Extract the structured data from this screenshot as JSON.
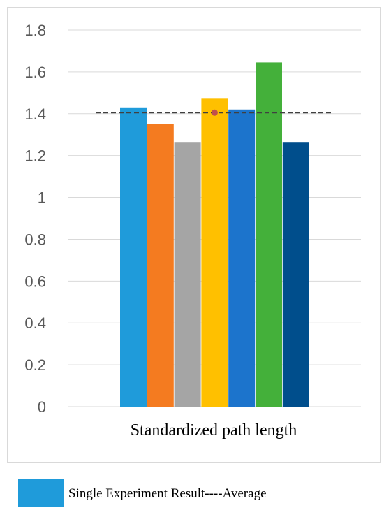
{
  "chart_data": {
    "type": "bar",
    "categories": [
      "Standardized path length"
    ],
    "series": [
      {
        "values": [
          1.43
        ],
        "color": "#1F9BDA"
      },
      {
        "values": [
          1.35
        ],
        "color": "#F47B20"
      },
      {
        "values": [
          1.265
        ],
        "color": "#A5A5A5"
      },
      {
        "values": [
          1.475
        ],
        "color": "#FFC000"
      },
      {
        "values": [
          1.42
        ],
        "color": "#1C74CC"
      },
      {
        "values": [
          1.645
        ],
        "color": "#44B03A"
      },
      {
        "values": [
          1.265
        ],
        "color": "#004E8C"
      }
    ],
    "average": {
      "value": 1.405,
      "color": "#404040",
      "marker_color": "#C0504D"
    },
    "xlabel": "Standardized path length",
    "ylim": [
      0,
      1.8
    ],
    "yticks": [
      0,
      0.2,
      0.4,
      0.6,
      0.8,
      1,
      1.2,
      1.4,
      1.6,
      1.8
    ],
    "ytick_labels": [
      "0",
      "0.2",
      "0.4",
      "0.6",
      "0.8",
      "1",
      "1.2",
      "1.4",
      "1.6",
      "1.8"
    ],
    "grid": true,
    "legend": {
      "text": "Single Experiment Result----Average",
      "swatch_color": "#1F9BDA",
      "placement": "bottom"
    }
  }
}
